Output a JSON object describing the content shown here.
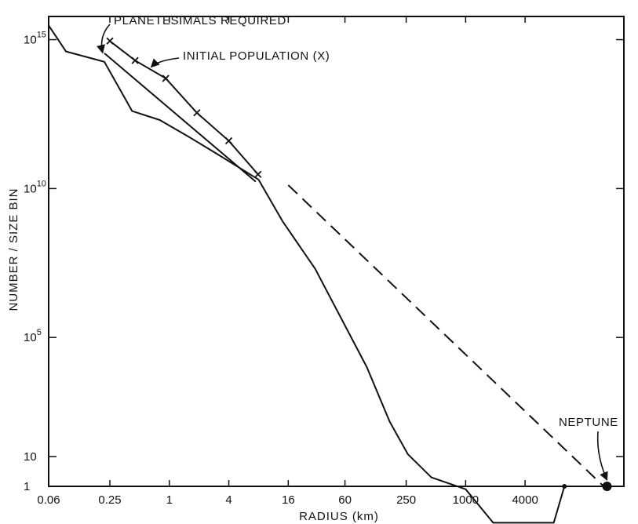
{
  "chart_data": {
    "type": "line",
    "title": "",
    "xlabel": "RADIUS (km)",
    "ylabel": "NUMBER / SIZE BIN",
    "x_scale": "log",
    "y_scale": "log",
    "xlim": [
      0.06,
      40000
    ],
    "ylim": [
      1,
      6000000000000000.0
    ],
    "x_ticks": [
      {
        "value": 0.06,
        "label": "0.06"
      },
      {
        "value": 0.25,
        "label": "0.25"
      },
      {
        "value": 1,
        "label": "1"
      },
      {
        "value": 4,
        "label": "4"
      },
      {
        "value": 16,
        "label": "16"
      },
      {
        "value": 60,
        "label": "60"
      },
      {
        "value": 250,
        "label": "250"
      },
      {
        "value": 1000,
        "label": "1000"
      },
      {
        "value": 4000,
        "label": "4000"
      }
    ],
    "y_ticks": [
      {
        "value": 1,
        "base": "1",
        "exp": ""
      },
      {
        "value": 10,
        "base": "10",
        "exp": ""
      },
      {
        "value": 100000,
        "base": "10",
        "exp": "5"
      },
      {
        "value": 10000000000.0,
        "base": "10",
        "exp": "10"
      },
      {
        "value": 1000000000000000.0,
        "base": "10",
        "exp": "15"
      }
    ],
    "grid": false,
    "series": [
      {
        "style": "solid",
        "points": [
          [
            0.06,
            3000000000000000.0
          ],
          [
            0.09,
            400000000000000.0
          ],
          [
            0.22,
            180000000000000.0
          ],
          [
            0.42,
            4000000000000.0
          ],
          [
            0.8,
            2000000000000.0
          ],
          [
            1.5,
            600000000000.0
          ],
          [
            3,
            150000000000.0
          ],
          [
            8,
            20000000000.0
          ],
          [
            14,
            800000000.0
          ],
          [
            30,
            20000000.0
          ],
          [
            100,
            10000.0
          ],
          [
            170,
            150.0
          ],
          [
            260,
            12.0
          ],
          [
            450,
            2
          ],
          [
            1000,
            0.8
          ],
          [
            1900,
            0.06
          ],
          [
            7800,
            0.06
          ],
          [
            10000,
            1
          ]
        ]
      },
      {
        "style": "marker-x",
        "points": [
          [
            0.25,
            900000000000000.0
          ],
          [
            0.45,
            200000000000000.0
          ],
          [
            0.92,
            50000000000000.0
          ],
          [
            1.9,
            3500000000000.0
          ],
          [
            4,
            400000000000.0
          ],
          [
            7.9,
            30000000000.0
          ]
        ]
      },
      {
        "style": "solid-fit",
        "points": [
          [
            0.22,
            350000000000000.0
          ],
          [
            7.5,
            17000000000.0
          ]
        ]
      },
      {
        "style": "dashed",
        "points": [
          [
            16,
            13000000000.0
          ],
          [
            25000,
            1
          ]
        ]
      }
    ],
    "markers": [
      {
        "x": 10000,
        "y": 1,
        "size": "small"
      },
      {
        "x": 27000,
        "y": 1,
        "size": "large"
      }
    ],
    "annotations": [
      {
        "text": "PLANETESIMALS REQUIRED",
        "points_to": [
          0.2,
          300000000000000.0
        ]
      },
      {
        "text": "INITIAL POPULATION (X)",
        "points_to": [
          0.62,
          100000000000000.0
        ]
      },
      {
        "text": "NEPTUNE",
        "points_to": [
          27000,
          1
        ]
      }
    ]
  }
}
